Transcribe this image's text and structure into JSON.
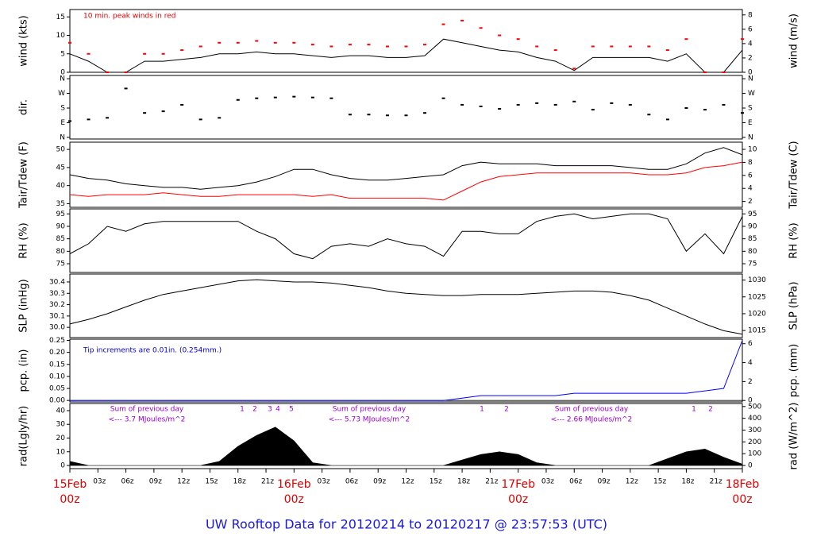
{
  "title": "UW Rooftop Data for 20120214  to  20120217 @ 23:57:53  (UTC)",
  "chart_data": [
    {
      "type": "line",
      "ylabel": "wind (kts)",
      "y2label": "wind (m/s)",
      "annotations": [
        "10 min. peak winds in red"
      ],
      "xlim": [
        0,
        72
      ],
      "ylim": [
        0,
        17
      ],
      "yticks": [
        0,
        5,
        10,
        15
      ],
      "y2lim": [
        0,
        8.75
      ],
      "y2ticks": [
        0,
        2,
        4,
        6,
        8
      ],
      "x": [
        0,
        2,
        4,
        6,
        8,
        10,
        12,
        14,
        16,
        18,
        20,
        22,
        24,
        26,
        28,
        30,
        32,
        34,
        36,
        38,
        40,
        42,
        44,
        46,
        48,
        50,
        52,
        54,
        56,
        58,
        60,
        62,
        64,
        66,
        68,
        70,
        72
      ],
      "series": [
        {
          "color": "#000000",
          "values": [
            5,
            3,
            0,
            0,
            3,
            3,
            3.5,
            4,
            5,
            5,
            5.5,
            5,
            5,
            4.5,
            4,
            4.5,
            4.5,
            4,
            4,
            4.5,
            9,
            8,
            7,
            6,
            5.5,
            4,
            3,
            0.5,
            4,
            4,
            4,
            4,
            3,
            5,
            0,
            0,
            6
          ]
        },
        {
          "color": "#ff0000",
          "style": "points",
          "values": [
            8,
            5,
            0,
            0,
            5,
            5,
            6,
            7,
            8,
            8,
            8.5,
            8,
            8,
            7.5,
            7,
            7.5,
            7.5,
            7,
            7,
            7.5,
            13,
            14,
            12,
            10,
            9,
            7,
            6,
            1,
            7,
            7,
            7,
            7,
            6,
            9,
            0,
            0,
            9
          ]
        }
      ]
    },
    {
      "type": "scatter",
      "ylabel": "dir.",
      "xlim": [
        0,
        72
      ],
      "ylim": [
        -10,
        380
      ],
      "yticks": [
        {
          "value": 0,
          "label": "N"
        },
        {
          "value": 90,
          "label": "E"
        },
        {
          "value": 180,
          "label": "S"
        },
        {
          "value": 270,
          "label": "W"
        },
        {
          "value": 360,
          "label": "N"
        }
      ],
      "y2lim": [
        -10,
        380
      ],
      "y2ticks": [
        {
          "value": 0,
          "label": "N"
        },
        {
          "value": 90,
          "label": "E"
        },
        {
          "value": 180,
          "label": "S"
        },
        {
          "value": 270,
          "label": "W"
        },
        {
          "value": 360,
          "label": "N"
        }
      ],
      "x": [
        0,
        2,
        4,
        6,
        8,
        10,
        12,
        14,
        16,
        18,
        20,
        22,
        24,
        26,
        28,
        30,
        32,
        34,
        36,
        38,
        40,
        42,
        44,
        46,
        48,
        50,
        52,
        54,
        56,
        58,
        60,
        62,
        64,
        66,
        68,
        70,
        72
      ],
      "series": [
        {
          "color": "#000000",
          "values": [
            100,
            110,
            120,
            300,
            150,
            160,
            200,
            110,
            120,
            230,
            240,
            245,
            250,
            245,
            240,
            140,
            140,
            135,
            135,
            150,
            240,
            200,
            190,
            175,
            200,
            210,
            200,
            220,
            170,
            210,
            200,
            140,
            110,
            180,
            170,
            200,
            150
          ]
        }
      ]
    },
    {
      "type": "line",
      "ylabel": "Tair/Tdew (F)",
      "y2label": "Tair/Tdew (C)",
      "xlim": [
        0,
        72
      ],
      "ylim": [
        34,
        52
      ],
      "yticks": [
        35,
        40,
        45,
        50
      ],
      "y2lim": [
        1.1,
        11.1
      ],
      "y2ticks": [
        2,
        4,
        6,
        8,
        10
      ],
      "x": [
        0,
        2,
        4,
        6,
        8,
        10,
        12,
        14,
        16,
        18,
        20,
        22,
        24,
        26,
        28,
        30,
        32,
        34,
        36,
        38,
        40,
        42,
        44,
        46,
        48,
        50,
        52,
        54,
        56,
        58,
        60,
        62,
        64,
        66,
        68,
        70,
        72
      ],
      "series": [
        {
          "color": "#000000",
          "values": [
            43,
            42,
            41.5,
            40.5,
            40,
            39.5,
            39.5,
            39,
            39.5,
            40,
            41,
            42.5,
            44.5,
            44.5,
            43,
            42,
            41.5,
            41.5,
            42,
            42.5,
            43,
            45.5,
            46.5,
            46,
            46,
            46,
            45.5,
            45.5,
            45.5,
            45.5,
            45,
            44.5,
            44.5,
            46,
            49,
            50.5,
            48.5
          ]
        },
        {
          "color": "#ff0000",
          "values": [
            37.5,
            37,
            37.5,
            37.5,
            37.5,
            38,
            37.5,
            37,
            37,
            37.5,
            37.5,
            37.5,
            37.5,
            37,
            37.5,
            36.5,
            36.5,
            36.5,
            36.5,
            36.5,
            36,
            38.5,
            41,
            42.5,
            43,
            43.5,
            43.5,
            43.5,
            43.5,
            43.5,
            43.5,
            43,
            43,
            43.5,
            45,
            45.5,
            46.5
          ]
        }
      ]
    },
    {
      "type": "line",
      "ylabel": "RH (%)",
      "y2label": "RH (%)",
      "xlim": [
        0,
        72
      ],
      "ylim": [
        71.5,
        97
      ],
      "yticks": [
        75,
        80,
        85,
        90,
        95
      ],
      "y2lim": [
        71.5,
        97
      ],
      "y2ticks": [
        75,
        80,
        85,
        90,
        95
      ],
      "x": [
        0,
        2,
        4,
        6,
        8,
        10,
        12,
        14,
        16,
        18,
        20,
        22,
        24,
        26,
        28,
        30,
        32,
        34,
        36,
        38,
        40,
        42,
        44,
        46,
        48,
        50,
        52,
        54,
        56,
        58,
        60,
        62,
        64,
        66,
        68,
        70,
        72
      ],
      "series": [
        {
          "color": "#000000",
          "values": [
            79,
            83,
            90,
            88,
            91,
            92,
            92,
            92,
            92,
            92,
            88,
            85,
            79,
            77,
            82,
            83,
            82,
            85,
            83,
            82,
            78,
            88,
            88,
            87,
            87,
            92,
            94,
            95,
            93,
            94,
            95,
            95,
            93,
            80,
            87,
            79,
            94
          ]
        }
      ]
    },
    {
      "type": "line",
      "ylabel": "SLP (inHg)",
      "y2label": "SLP (hPa)",
      "xlim": [
        0,
        72
      ],
      "ylim": [
        29.91,
        30.47
      ],
      "yticks": [
        {
          "value": 30,
          "label": "30.0"
        },
        30.1,
        30.2,
        30.3,
        30.4
      ],
      "y2lim": [
        1012.9,
        1031.8
      ],
      "y2ticks": [
        1015,
        1020,
        1025,
        1030
      ],
      "x": [
        0,
        2,
        4,
        6,
        8,
        10,
        12,
        14,
        16,
        18,
        20,
        22,
        24,
        26,
        28,
        30,
        32,
        34,
        36,
        38,
        40,
        42,
        44,
        46,
        48,
        50,
        52,
        54,
        56,
        58,
        60,
        62,
        64,
        66,
        68,
        70,
        72
      ],
      "series": [
        {
          "color": "#000000",
          "values": [
            30.03,
            30.07,
            30.12,
            30.18,
            30.24,
            30.29,
            30.32,
            30.35,
            30.38,
            30.41,
            30.42,
            30.41,
            30.4,
            30.4,
            30.39,
            30.37,
            30.35,
            30.32,
            30.3,
            30.29,
            30.28,
            30.28,
            30.29,
            30.29,
            30.29,
            30.3,
            30.31,
            30.32,
            30.32,
            30.31,
            30.28,
            30.24,
            30.17,
            30.1,
            30.03,
            29.97,
            29.94
          ]
        }
      ]
    },
    {
      "type": "line",
      "ylabel": "pcp. (in)",
      "y2label": "pcp. (mm)",
      "annotations": [
        "Tip increments are 0.01in. (0.254mm.)"
      ],
      "xlim": [
        0,
        72
      ],
      "ylim": [
        -0.006,
        0.255
      ],
      "yticks": [
        {
          "value": 0,
          "label": "0.00"
        },
        0.05,
        {
          "value": 0.1,
          "label": "0.10"
        },
        0.15,
        {
          "value": 0.2,
          "label": "0.20"
        },
        0.25
      ],
      "y2lim": [
        -0.15,
        6.48
      ],
      "y2ticks": [
        0,
        2,
        4,
        6
      ],
      "x": [
        0,
        2,
        4,
        6,
        8,
        10,
        12,
        14,
        16,
        18,
        20,
        22,
        24,
        26,
        28,
        30,
        32,
        34,
        36,
        38,
        40,
        42,
        44,
        46,
        48,
        50,
        52,
        54,
        56,
        58,
        60,
        62,
        64,
        66,
        68,
        70,
        72
      ],
      "series": [
        {
          "color": "#0000ff",
          "values": [
            0,
            0,
            0,
            0,
            0,
            0,
            0,
            0,
            0,
            0,
            0,
            0,
            0,
            0,
            0,
            0,
            0,
            0,
            0,
            0,
            0,
            0.01,
            0.02,
            0.02,
            0.02,
            0.02,
            0.02,
            0.03,
            0.03,
            0.03,
            0.03,
            0.03,
            0.03,
            0.03,
            0.04,
            0.05,
            0.25
          ]
        }
      ]
    },
    {
      "type": "area",
      "ylabel": "rad(Lgly/hr)",
      "y2label": "rad (W/m^2)",
      "annotations": [
        "Sum of previous day",
        "<--- 3.7 MJoules/m^2",
        "Sum of previous day",
        "<--- 5.73 MJoules/m^2",
        "Sum of previous day",
        "<--- 2.66 MJoules/m^2"
      ],
      "markers": [
        [
          "1",
          "2",
          "3",
          "4",
          "5"
        ],
        [
          "1",
          "2"
        ],
        [
          "1",
          "2"
        ]
      ],
      "xlim": [
        0,
        72
      ],
      "ylim": [
        -2.3,
        45.2
      ],
      "yticks": [
        0,
        10,
        20,
        30,
        40
      ],
      "y2lim": [
        -26.7,
        525.7
      ],
      "y2ticks": [
        0,
        100,
        200,
        300,
        400,
        500
      ],
      "xticks": [
        {
          "value": 0,
          "label": "15Feb 00z"
        },
        {
          "value": 3,
          "label": "03z"
        },
        {
          "value": 6,
          "label": "06z"
        },
        {
          "value": 9,
          "label": "09z"
        },
        {
          "value": 12,
          "label": "12z"
        },
        {
          "value": 15,
          "label": "15z"
        },
        {
          "value": 18,
          "label": "18z"
        },
        {
          "value": 21,
          "label": "21z"
        },
        {
          "value": 24,
          "label": "16Feb 00z"
        },
        {
          "value": 27,
          "label": "03z"
        },
        {
          "value": 30,
          "label": "06z"
        },
        {
          "value": 33,
          "label": "09z"
        },
        {
          "value": 36,
          "label": "12z"
        },
        {
          "value": 39,
          "label": "15z"
        },
        {
          "value": 42,
          "label": "18z"
        },
        {
          "value": 45,
          "label": "21z"
        },
        {
          "value": 48,
          "label": "17Feb 00z"
        },
        {
          "value": 51,
          "label": "03z"
        },
        {
          "value": 54,
          "label": "06z"
        },
        {
          "value": 57,
          "label": "09z"
        },
        {
          "value": 60,
          "label": "12z"
        },
        {
          "value": 63,
          "label": "15z"
        },
        {
          "value": 66,
          "label": "18z"
        },
        {
          "value": 69,
          "label": "21z"
        },
        {
          "value": 72,
          "label": "18Feb 00z"
        }
      ],
      "x": [
        0,
        2,
        4,
        6,
        8,
        10,
        12,
        14,
        16,
        18,
        20,
        22,
        24,
        26,
        28,
        30,
        32,
        34,
        36,
        38,
        40,
        42,
        44,
        46,
        48,
        50,
        52,
        54,
        56,
        58,
        60,
        62,
        64,
        66,
        68,
        70,
        72
      ],
      "series": [
        {
          "color": "#000000",
          "values": [
            3,
            0,
            0,
            0,
            0,
            0,
            0,
            0,
            3,
            14,
            22,
            28,
            18,
            2,
            0,
            0,
            0,
            0,
            0,
            0,
            0,
            4,
            8,
            10,
            8,
            2,
            0,
            0,
            0,
            0,
            0,
            0,
            5,
            10,
            12,
            6,
            1
          ]
        }
      ]
    }
  ]
}
